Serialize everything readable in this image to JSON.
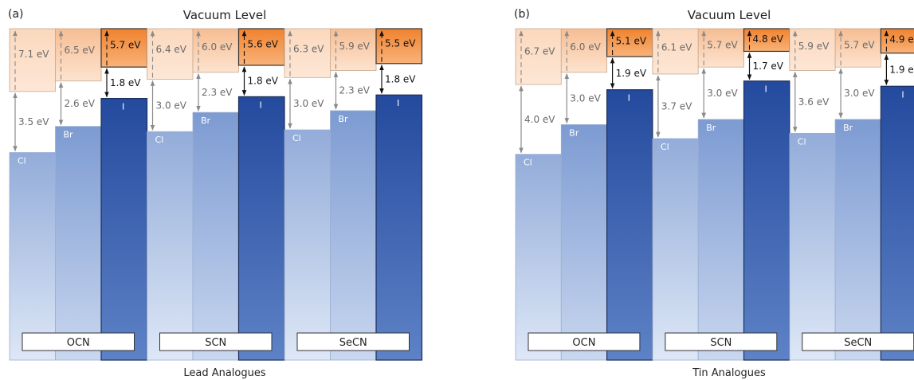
{
  "panels": [
    {
      "letter": "(a)",
      "header": "Vacuum Level",
      "footer": "Lead Analogues",
      "groups": [
        {
          "label": "OCN",
          "materials": [
            {
              "halide": "Cl",
              "ionization": "7.1 eV",
              "gap": "3.5 eV",
              "ip": 7.1,
              "eg": 3.5
            },
            {
              "halide": "Br",
              "ionization": "6.5 eV",
              "gap": "2.6 eV",
              "ip": 6.5,
              "eg": 2.6
            },
            {
              "halide": "I",
              "ionization": "5.7 eV",
              "gap": "1.8 eV",
              "ip": 5.7,
              "eg": 1.8
            }
          ]
        },
        {
          "label": "SCN",
          "materials": [
            {
              "halide": "Cl",
              "ionization": "6.4 eV",
              "gap": "3.0 eV",
              "ip": 6.4,
              "eg": 3.0
            },
            {
              "halide": "Br",
              "ionization": "6.0 eV",
              "gap": "2.3 eV",
              "ip": 6.0,
              "eg": 2.3
            },
            {
              "halide": "I",
              "ionization": "5.6 eV",
              "gap": "1.8 eV",
              "ip": 5.6,
              "eg": 1.8
            }
          ]
        },
        {
          "label": "SeCN",
          "materials": [
            {
              "halide": "Cl",
              "ionization": "6.3 eV",
              "gap": "3.0 eV",
              "ip": 6.3,
              "eg": 3.0
            },
            {
              "halide": "Br",
              "ionization": "5.9 eV",
              "gap": "2.3 eV",
              "ip": 5.9,
              "eg": 2.3
            },
            {
              "halide": "I",
              "ionization": "5.5 eV",
              "gap": "1.8 eV",
              "ip": 5.5,
              "eg": 1.8
            }
          ]
        }
      ]
    },
    {
      "letter": "(b)",
      "header": "Vacuum Level",
      "footer": "Tin Analogues",
      "groups": [
        {
          "label": "OCN",
          "materials": [
            {
              "halide": "Cl",
              "ionization": "6.7 eV",
              "gap": "4.0 eV",
              "ip": 6.7,
              "eg": 4.0
            },
            {
              "halide": "Br",
              "ionization": "6.0 eV",
              "gap": "3.0 eV",
              "ip": 6.0,
              "eg": 3.0
            },
            {
              "halide": "I",
              "ionization": "5.1 eV",
              "gap": "1.9 eV",
              "ip": 5.1,
              "eg": 1.9
            }
          ]
        },
        {
          "label": "SCN",
          "materials": [
            {
              "halide": "Cl",
              "ionization": "6.1 eV",
              "gap": "3.7 eV",
              "ip": 6.1,
              "eg": 3.7
            },
            {
              "halide": "Br",
              "ionization": "5.7 eV",
              "gap": "3.0 eV",
              "ip": 5.7,
              "eg": 3.0
            },
            {
              "halide": "I",
              "ionization": "4.8 eV",
              "gap": "1.7 eV",
              "ip": 4.8,
              "eg": 1.7
            }
          ]
        },
        {
          "label": "SeCN",
          "materials": [
            {
              "halide": "Cl",
              "ionization": "5.9 eV",
              "gap": "3.6 eV",
              "ip": 5.9,
              "eg": 3.6
            },
            {
              "halide": "Br",
              "ionization": "5.7 eV",
              "gap": "3.0 eV",
              "ip": 5.7,
              "eg": 3.0
            },
            {
              "halide": "I",
              "ionization": "4.9 eV",
              "gap": "1.9 eV",
              "ip": 4.9,
              "eg": 1.9
            }
          ]
        }
      ]
    }
  ],
  "colors": {
    "cb_light": "#fde7d6",
    "cb_mid": "#f9c59b",
    "cb_dark": "#f0822e",
    "vb_light": "#c6d6ef",
    "vb_mid": "#8aa6d6",
    "vb_dark": "#2e56a8",
    "arrow_light": "#8a8a8a",
    "arrow_dark": "#111111",
    "text_light": "#6a6a6a",
    "text_dark": "#111111"
  }
}
